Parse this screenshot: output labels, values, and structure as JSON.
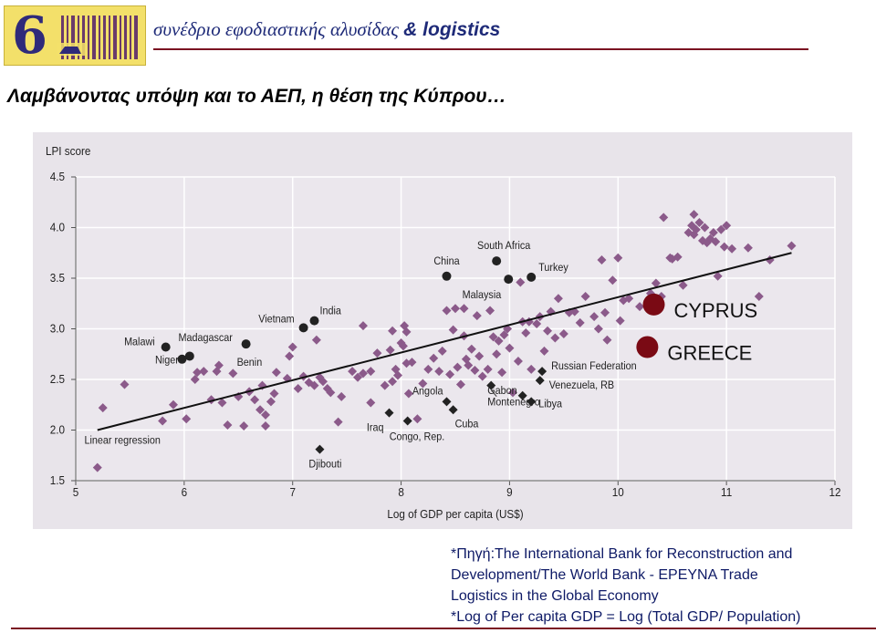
{
  "header": {
    "title": "συνέδριο εφοδιαστικής αλυσίδας",
    "title_amp": "& logistics",
    "logo_digit": "6"
  },
  "slide": {
    "heading": "Λαμβάνοντας υπόψη και το ΑΕΠ, η θέση της Κύπρου…"
  },
  "source": {
    "lines": [
      "*Πηγή:The International Bank for Reconstruction and",
      "Development/The World Bank - EPEYNA Trade",
      "Logistics in the Global Economy",
      "*Log of Per capita GDP = Log (Total GDP/ Population)"
    ]
  },
  "colors": {
    "background": "#e8e4ea",
    "other_countries": "#8b5a8a",
    "labeled_countries": "#222222",
    "highlight": "#7a0a14",
    "header_text": "#1e2a78",
    "rule": "#7a1222"
  },
  "chart_data": {
    "type": "scatter",
    "xlabel": "Log of GDP per capita (US$)",
    "ylabel": "LPI score",
    "xlim": [
      5,
      12
    ],
    "ylim": [
      1.5,
      4.5
    ],
    "xticks": [
      "5",
      "6",
      "7",
      "8",
      "9",
      "10",
      "11",
      "12"
    ],
    "yticks": [
      "1.5",
      "2.0",
      "2.5",
      "3.0",
      "3.5",
      "4.0",
      "4.5"
    ],
    "grid": true,
    "regression": {
      "label": "Linear regression",
      "x": [
        5.2,
        11.6
      ],
      "y": [
        2.0,
        3.75
      ]
    },
    "highlighted": [
      {
        "name": "CYPRUS",
        "x": 10.33,
        "y": 3.24
      },
      {
        "name": "GREECE",
        "x": 10.27,
        "y": 2.82
      }
    ],
    "labeled_circles": [
      {
        "name": "Malawi",
        "x": 5.83,
        "y": 2.82
      },
      {
        "name": "Madagascar",
        "x": 5.98,
        "y": 2.7
      },
      {
        "name": "Niger",
        "x": 6.05,
        "y": 2.73
      },
      {
        "name": "Benin",
        "x": 6.57,
        "y": 2.85
      },
      {
        "name": "Vietnam",
        "x": 7.1,
        "y": 3.01
      },
      {
        "name": "India",
        "x": 7.2,
        "y": 3.08
      },
      {
        "name": "China",
        "x": 8.42,
        "y": 3.52
      },
      {
        "name": "South Africa",
        "x": 8.88,
        "y": 3.67
      },
      {
        "name": "Malaysia",
        "x": 8.99,
        "y": 3.49
      },
      {
        "name": "Turkey",
        "x": 9.2,
        "y": 3.51
      }
    ],
    "labeled_diamonds": [
      {
        "name": "Russian Federation",
        "x": 9.3,
        "y": 2.58
      },
      {
        "name": "Venezuela, RB",
        "x": 9.28,
        "y": 2.49
      },
      {
        "name": "Gabon",
        "x": 9.12,
        "y": 2.34
      },
      {
        "name": "Libya",
        "x": 9.2,
        "y": 2.28
      },
      {
        "name": "Montenegro",
        "x": 8.83,
        "y": 2.44
      },
      {
        "name": "Cuba",
        "x": 8.48,
        "y": 2.2
      },
      {
        "name": "Angola",
        "x": 8.42,
        "y": 2.28
      },
      {
        "name": "Iraq",
        "x": 7.89,
        "y": 2.17
      },
      {
        "name": "Congo, Rep.",
        "x": 8.06,
        "y": 2.09
      },
      {
        "name": "Djibouti",
        "x": 7.25,
        "y": 1.81
      }
    ],
    "other_points": [
      [
        5.2,
        1.63
      ],
      [
        5.25,
        2.22
      ],
      [
        5.45,
        2.45
      ],
      [
        5.8,
        2.09
      ],
      [
        5.9,
        2.25
      ],
      [
        6.02,
        2.11
      ],
      [
        6.1,
        2.5
      ],
      [
        6.12,
        2.57
      ],
      [
        6.18,
        2.58
      ],
      [
        6.25,
        2.3
      ],
      [
        6.3,
        2.58
      ],
      [
        6.32,
        2.64
      ],
      [
        6.35,
        2.27
      ],
      [
        6.4,
        2.05
      ],
      [
        6.45,
        2.56
      ],
      [
        6.5,
        2.33
      ],
      [
        6.55,
        2.04
      ],
      [
        6.6,
        2.38
      ],
      [
        6.65,
        2.3
      ],
      [
        6.7,
        2.2
      ],
      [
        6.72,
        2.44
      ],
      [
        6.75,
        2.15
      ],
      [
        6.75,
        2.04
      ],
      [
        6.8,
        2.28
      ],
      [
        6.83,
        2.36
      ],
      [
        6.85,
        2.57
      ],
      [
        6.95,
        2.51
      ],
      [
        6.97,
        2.73
      ],
      [
        7.0,
        2.82
      ],
      [
        7.05,
        2.41
      ],
      [
        7.1,
        2.53
      ],
      [
        7.15,
        2.47
      ],
      [
        7.2,
        2.44
      ],
      [
        7.22,
        2.89
      ],
      [
        7.25,
        2.52
      ],
      [
        7.28,
        2.48
      ],
      [
        7.32,
        2.41
      ],
      [
        7.35,
        2.37
      ],
      [
        7.42,
        2.08
      ],
      [
        7.45,
        2.33
      ],
      [
        7.55,
        2.58
      ],
      [
        7.6,
        2.52
      ],
      [
        7.65,
        3.03
      ],
      [
        7.72,
        2.27
      ],
      [
        7.78,
        2.76
      ],
      [
        7.85,
        2.44
      ],
      [
        7.9,
        2.79
      ],
      [
        7.92,
        2.98
      ],
      [
        7.95,
        2.6
      ],
      [
        7.97,
        2.54
      ],
      [
        8.0,
        2.86
      ],
      [
        8.02,
        2.83
      ],
      [
        8.03,
        3.03
      ],
      [
        8.05,
        2.97
      ],
      [
        8.07,
        2.36
      ],
      [
        8.1,
        2.67
      ],
      [
        8.15,
        2.11
      ],
      [
        8.2,
        2.46
      ],
      [
        8.25,
        2.6
      ],
      [
        8.3,
        2.71
      ],
      [
        8.35,
        2.58
      ],
      [
        8.38,
        2.78
      ],
      [
        8.42,
        3.18
      ],
      [
        8.45,
        2.55
      ],
      [
        8.48,
        2.99
      ],
      [
        8.5,
        3.2
      ],
      [
        8.52,
        2.62
      ],
      [
        8.55,
        2.45
      ],
      [
        8.58,
        2.93
      ],
      [
        8.6,
        2.7
      ],
      [
        8.62,
        2.64
      ],
      [
        8.65,
        2.8
      ],
      [
        8.68,
        2.59
      ],
      [
        8.72,
        2.73
      ],
      [
        8.75,
        2.53
      ],
      [
        8.8,
        2.6
      ],
      [
        8.82,
        3.18
      ],
      [
        8.85,
        2.92
      ],
      [
        8.88,
        2.75
      ],
      [
        8.9,
        2.88
      ],
      [
        8.93,
        2.57
      ],
      [
        8.95,
        2.94
      ],
      [
        8.98,
        3.0
      ],
      [
        9.0,
        2.81
      ],
      [
        9.03,
        2.37
      ],
      [
        9.08,
        2.68
      ],
      [
        9.12,
        3.07
      ],
      [
        9.15,
        2.96
      ],
      [
        9.18,
        3.07
      ],
      [
        9.2,
        2.6
      ],
      [
        9.25,
        3.05
      ],
      [
        9.28,
        3.12
      ],
      [
        9.32,
        2.78
      ],
      [
        9.35,
        2.98
      ],
      [
        9.38,
        3.17
      ],
      [
        9.42,
        2.91
      ],
      [
        9.45,
        3.3
      ],
      [
        9.5,
        2.95
      ],
      [
        9.55,
        3.16
      ],
      [
        9.6,
        3.17
      ],
      [
        9.65,
        3.06
      ],
      [
        9.7,
        3.32
      ],
      [
        9.78,
        3.12
      ],
      [
        9.82,
        3.0
      ],
      [
        9.85,
        3.68
      ],
      [
        9.88,
        3.16
      ],
      [
        9.9,
        2.89
      ],
      [
        9.95,
        3.48
      ],
      [
        10.0,
        3.7
      ],
      [
        10.02,
        3.08
      ],
      [
        10.05,
        3.28
      ],
      [
        10.1,
        3.3
      ],
      [
        10.2,
        3.22
      ],
      [
        10.3,
        3.35
      ],
      [
        10.35,
        3.45
      ],
      [
        10.4,
        3.32
      ],
      [
        10.42,
        4.1
      ],
      [
        10.48,
        3.7
      ],
      [
        10.5,
        3.69
      ],
      [
        10.55,
        3.71
      ],
      [
        10.6,
        3.43
      ],
      [
        10.65,
        3.95
      ],
      [
        10.68,
        4.02
      ],
      [
        10.7,
        3.93
      ],
      [
        10.72,
        3.98
      ],
      [
        10.75,
        4.05
      ],
      [
        10.78,
        3.87
      ],
      [
        10.82,
        3.85
      ],
      [
        10.85,
        3.89
      ],
      [
        10.88,
        3.95
      ],
      [
        10.92,
        3.52
      ],
      [
        10.95,
        3.98
      ],
      [
        10.98,
        3.81
      ],
      [
        11.0,
        4.02
      ],
      [
        11.05,
        3.79
      ],
      [
        11.2,
        3.8
      ],
      [
        11.3,
        3.32
      ],
      [
        11.4,
        3.68
      ],
      [
        11.6,
        3.82
      ],
      [
        10.7,
        4.13
      ],
      [
        10.8,
        4.0
      ],
      [
        10.9,
        3.86
      ],
      [
        9.1,
        3.46
      ],
      [
        7.92,
        2.48
      ],
      [
        8.05,
        2.66
      ],
      [
        7.65,
        2.56
      ],
      [
        7.72,
        2.58
      ],
      [
        8.7,
        3.13
      ],
      [
        8.58,
        3.2
      ]
    ]
  }
}
